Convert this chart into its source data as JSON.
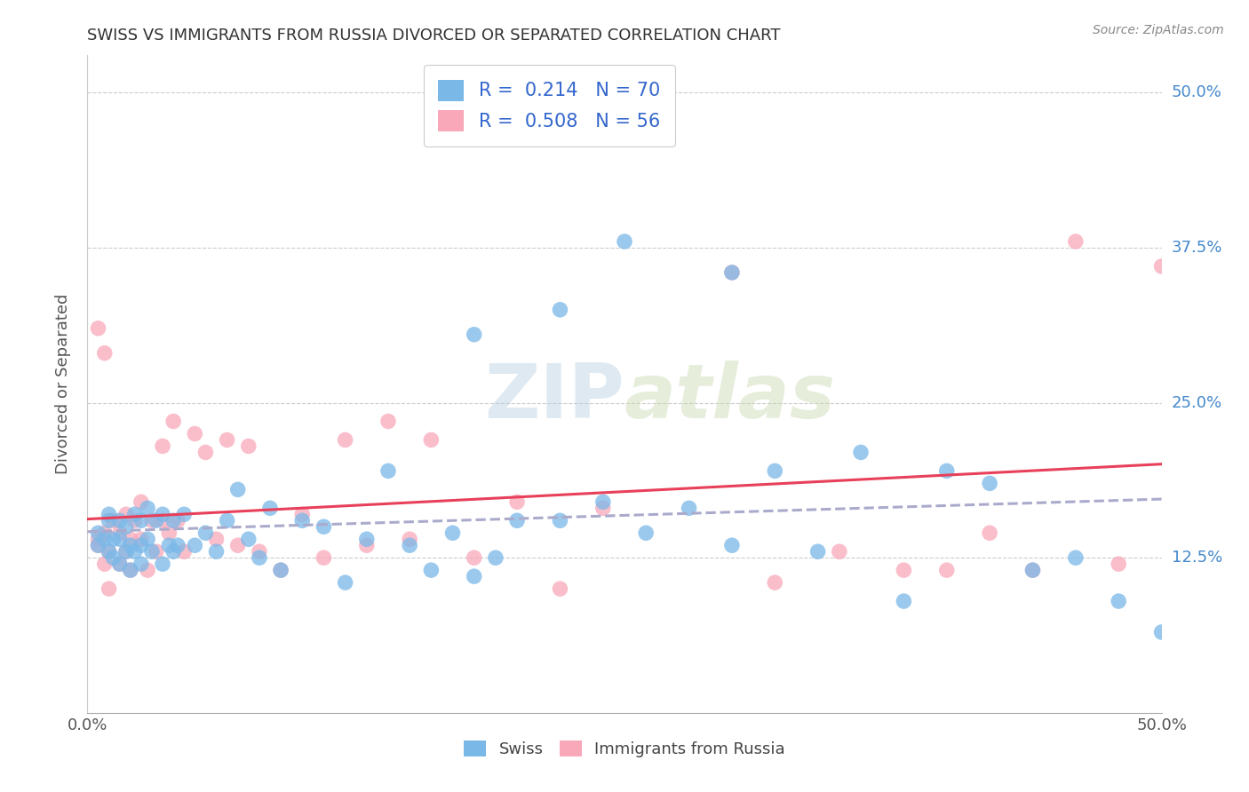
{
  "title": "SWISS VS IMMIGRANTS FROM RUSSIA DIVORCED OR SEPARATED CORRELATION CHART",
  "source": "Source: ZipAtlas.com",
  "ylabel": "Divorced or Separated",
  "ytick_labels": [
    "12.5%",
    "25.0%",
    "37.5%",
    "50.0%"
  ],
  "ytick_values": [
    0.125,
    0.25,
    0.375,
    0.5
  ],
  "xmin": 0.0,
  "xmax": 0.5,
  "ymin": 0.0,
  "ymax": 0.53,
  "legend_swiss_R": "0.214",
  "legend_swiss_N": "70",
  "legend_russia_R": "0.508",
  "legend_russia_N": "56",
  "swiss_color": "#7ab8e8",
  "russia_color": "#f9a8ba",
  "swiss_line_color": "#aaaacc",
  "russia_line_color": "#e8405a",
  "watermark_zip": "ZIP",
  "watermark_atlas": "atlas",
  "background_color": "#ffffff",
  "grid_color": "#cccccc",
  "title_color": "#333333",
  "axis_color": "#555555",
  "swiss_scatter_x": [
    0.005,
    0.005,
    0.008,
    0.01,
    0.01,
    0.01,
    0.012,
    0.012,
    0.015,
    0.015,
    0.015,
    0.018,
    0.018,
    0.02,
    0.02,
    0.022,
    0.022,
    0.025,
    0.025,
    0.025,
    0.028,
    0.028,
    0.03,
    0.032,
    0.035,
    0.035,
    0.038,
    0.04,
    0.04,
    0.042,
    0.045,
    0.05,
    0.055,
    0.06,
    0.065,
    0.07,
    0.075,
    0.08,
    0.085,
    0.09,
    0.1,
    0.11,
    0.12,
    0.13,
    0.14,
    0.15,
    0.16,
    0.17,
    0.18,
    0.19,
    0.2,
    0.22,
    0.24,
    0.26,
    0.28,
    0.3,
    0.32,
    0.34,
    0.36,
    0.38,
    0.4,
    0.42,
    0.44,
    0.46,
    0.48,
    0.5,
    0.25,
    0.3,
    0.18,
    0.22
  ],
  "swiss_scatter_y": [
    0.135,
    0.145,
    0.14,
    0.13,
    0.155,
    0.16,
    0.125,
    0.14,
    0.12,
    0.14,
    0.155,
    0.13,
    0.15,
    0.115,
    0.135,
    0.13,
    0.16,
    0.12,
    0.135,
    0.155,
    0.14,
    0.165,
    0.13,
    0.155,
    0.12,
    0.16,
    0.135,
    0.13,
    0.155,
    0.135,
    0.16,
    0.135,
    0.145,
    0.13,
    0.155,
    0.18,
    0.14,
    0.125,
    0.165,
    0.115,
    0.155,
    0.15,
    0.105,
    0.14,
    0.195,
    0.135,
    0.115,
    0.145,
    0.11,
    0.125,
    0.155,
    0.155,
    0.17,
    0.145,
    0.165,
    0.135,
    0.195,
    0.13,
    0.21,
    0.09,
    0.195,
    0.185,
    0.115,
    0.125,
    0.09,
    0.065,
    0.38,
    0.355,
    0.305,
    0.325
  ],
  "russia_scatter_x": [
    0.005,
    0.005,
    0.008,
    0.008,
    0.01,
    0.01,
    0.012,
    0.015,
    0.015,
    0.018,
    0.018,
    0.02,
    0.02,
    0.022,
    0.025,
    0.025,
    0.028,
    0.03,
    0.032,
    0.035,
    0.035,
    0.038,
    0.04,
    0.042,
    0.045,
    0.05,
    0.055,
    0.06,
    0.065,
    0.07,
    0.075,
    0.08,
    0.09,
    0.1,
    0.11,
    0.12,
    0.13,
    0.14,
    0.15,
    0.16,
    0.18,
    0.2,
    0.22,
    0.24,
    0.3,
    0.32,
    0.35,
    0.38,
    0.4,
    0.42,
    0.44,
    0.46,
    0.48,
    0.5,
    0.005,
    0.008
  ],
  "russia_scatter_y": [
    0.135,
    0.14,
    0.12,
    0.145,
    0.1,
    0.13,
    0.155,
    0.12,
    0.145,
    0.13,
    0.16,
    0.115,
    0.14,
    0.155,
    0.14,
    0.17,
    0.115,
    0.155,
    0.13,
    0.155,
    0.215,
    0.145,
    0.235,
    0.155,
    0.13,
    0.225,
    0.21,
    0.14,
    0.22,
    0.135,
    0.215,
    0.13,
    0.115,
    0.16,
    0.125,
    0.22,
    0.135,
    0.235,
    0.14,
    0.22,
    0.125,
    0.17,
    0.1,
    0.165,
    0.355,
    0.105,
    0.13,
    0.115,
    0.115,
    0.145,
    0.115,
    0.38,
    0.12,
    0.36,
    0.31,
    0.29
  ]
}
